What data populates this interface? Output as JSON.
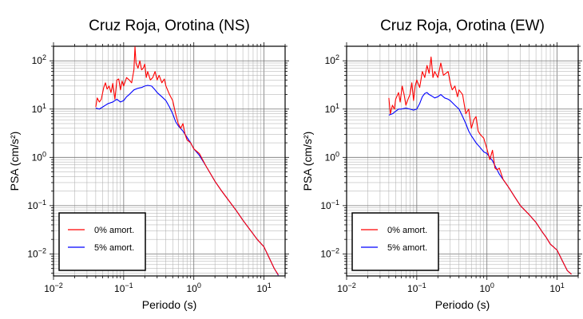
{
  "chart_data": [
    {
      "type": "line",
      "title": "Cruz Roja, Orotina (NS)",
      "xlabel": "Periodo (s)",
      "ylabel": "PSA (cm/s²)",
      "xscale": "log",
      "yscale": "log",
      "xlim": [
        0.01,
        20
      ],
      "ylim": [
        0.0035,
        200
      ],
      "grid": true,
      "legend_position": "bottom-left",
      "x_ticks": [
        {
          "value": 0.01,
          "base": "10",
          "exp": "−2"
        },
        {
          "value": 0.1,
          "base": "10",
          "exp": "−1"
        },
        {
          "value": 1,
          "base": "10",
          "exp": "0"
        },
        {
          "value": 10,
          "base": "10",
          "exp": "1"
        }
      ],
      "y_ticks": [
        {
          "value": 0.01,
          "base": "10",
          "exp": "−2"
        },
        {
          "value": 0.1,
          "base": "10",
          "exp": "−1"
        },
        {
          "value": 1,
          "base": "10",
          "exp": "0"
        },
        {
          "value": 10,
          "base": "10",
          "exp": "1"
        },
        {
          "value": 100,
          "base": "10",
          "exp": "2"
        }
      ],
      "series": [
        {
          "name": "0% amort.",
          "color": "#ff0000",
          "points": [
            [
              0.04,
              11
            ],
            [
              0.042,
              17
            ],
            [
              0.045,
              14
            ],
            [
              0.048,
              16
            ],
            [
              0.052,
              28
            ],
            [
              0.055,
              35
            ],
            [
              0.058,
              26
            ],
            [
              0.062,
              30
            ],
            [
              0.066,
              22
            ],
            [
              0.07,
              34
            ],
            [
              0.075,
              16
            ],
            [
              0.08,
              40
            ],
            [
              0.085,
              42
            ],
            [
              0.09,
              25
            ],
            [
              0.095,
              38
            ],
            [
              0.1,
              30
            ],
            [
              0.11,
              45
            ],
            [
              0.12,
              40
            ],
            [
              0.13,
              35
            ],
            [
              0.14,
              65
            ],
            [
              0.145,
              195
            ],
            [
              0.15,
              90
            ],
            [
              0.16,
              70
            ],
            [
              0.17,
              100
            ],
            [
              0.18,
              65
            ],
            [
              0.19,
              70
            ],
            [
              0.2,
              85
            ],
            [
              0.21,
              45
            ],
            [
              0.22,
              60
            ],
            [
              0.24,
              40
            ],
            [
              0.26,
              45
            ],
            [
              0.28,
              60
            ],
            [
              0.3,
              40
            ],
            [
              0.32,
              50
            ],
            [
              0.35,
              35
            ],
            [
              0.38,
              42
            ],
            [
              0.4,
              30
            ],
            [
              0.45,
              20
            ],
            [
              0.5,
              15
            ],
            [
              0.55,
              8
            ],
            [
              0.6,
              5
            ],
            [
              0.65,
              4
            ],
            [
              0.7,
              5
            ],
            [
              0.75,
              3
            ],
            [
              0.8,
              2.3
            ],
            [
              0.9,
              2
            ],
            [
              1,
              1.5
            ],
            [
              1.2,
              1.2
            ],
            [
              1.5,
              0.65
            ],
            [
              2,
              0.32
            ],
            [
              2.5,
              0.2
            ],
            [
              3,
              0.14
            ],
            [
              4,
              0.08
            ],
            [
              5,
              0.05
            ],
            [
              6,
              0.035
            ],
            [
              7,
              0.026
            ],
            [
              8,
              0.02
            ],
            [
              10,
              0.014
            ],
            [
              12,
              0.008
            ],
            [
              14,
              0.005
            ],
            [
              16,
              0.0037
            ]
          ]
        },
        {
          "name": "5% amort.",
          "color": "#0000ff",
          "points": [
            [
              0.04,
              10.5
            ],
            [
              0.045,
              10
            ],
            [
              0.05,
              11
            ],
            [
              0.055,
              12
            ],
            [
              0.06,
              13
            ],
            [
              0.07,
              14
            ],
            [
              0.08,
              16
            ],
            [
              0.09,
              14
            ],
            [
              0.1,
              15
            ],
            [
              0.11,
              18
            ],
            [
              0.12,
              20
            ],
            [
              0.14,
              25
            ],
            [
              0.16,
              27
            ],
            [
              0.18,
              28
            ],
            [
              0.2,
              30
            ],
            [
              0.22,
              31
            ],
            [
              0.25,
              30
            ],
            [
              0.28,
              25
            ],
            [
              0.3,
              22
            ],
            [
              0.35,
              18
            ],
            [
              0.4,
              15
            ],
            [
              0.45,
              11
            ],
            [
              0.5,
              8
            ],
            [
              0.55,
              5.5
            ],
            [
              0.6,
              4.5
            ],
            [
              0.7,
              3.5
            ],
            [
              0.8,
              2.6
            ],
            [
              0.9,
              2
            ],
            [
              1,
              1.5
            ],
            [
              1.2,
              1.1
            ],
            [
              1.5,
              0.65
            ],
            [
              2,
              0.32
            ],
            [
              2.5,
              0.2
            ],
            [
              3,
              0.14
            ],
            [
              4,
              0.08
            ],
            [
              5,
              0.05
            ],
            [
              6,
              0.035
            ],
            [
              7,
              0.026
            ],
            [
              8,
              0.02
            ],
            [
              10,
              0.014
            ],
            [
              12,
              0.008
            ],
            [
              14,
              0.005
            ],
            [
              16,
              0.0036
            ]
          ]
        }
      ]
    },
    {
      "type": "line",
      "title": "Cruz Roja, Orotina (EW)",
      "xlabel": "Periodo (s)",
      "ylabel": "PSA (cm/s²)",
      "xscale": "log",
      "yscale": "log",
      "xlim": [
        0.01,
        20
      ],
      "ylim": [
        0.0035,
        200
      ],
      "grid": true,
      "legend_position": "bottom-left",
      "x_ticks": [
        {
          "value": 0.01,
          "base": "10",
          "exp": "−2"
        },
        {
          "value": 0.1,
          "base": "10",
          "exp": "−1"
        },
        {
          "value": 1,
          "base": "10",
          "exp": "0"
        },
        {
          "value": 10,
          "base": "10",
          "exp": "1"
        }
      ],
      "y_ticks": [
        {
          "value": 0.01,
          "base": "10",
          "exp": "−2"
        },
        {
          "value": 0.1,
          "base": "10",
          "exp": "−1"
        },
        {
          "value": 1,
          "base": "10",
          "exp": "0"
        },
        {
          "value": 10,
          "base": "10",
          "exp": "1"
        },
        {
          "value": 100,
          "base": "10",
          "exp": "2"
        }
      ],
      "series": [
        {
          "name": "0% amort.",
          "color": "#ff0000",
          "points": [
            [
              0.04,
              17
            ],
            [
              0.042,
              8
            ],
            [
              0.045,
              12
            ],
            [
              0.048,
              10
            ],
            [
              0.05,
              16
            ],
            [
              0.055,
              22
            ],
            [
              0.058,
              14
            ],
            [
              0.062,
              30
            ],
            [
              0.066,
              20
            ],
            [
              0.07,
              12
            ],
            [
              0.075,
              16
            ],
            [
              0.08,
              20
            ],
            [
              0.085,
              35
            ],
            [
              0.09,
              15
            ],
            [
              0.095,
              30
            ],
            [
              0.1,
              40
            ],
            [
              0.11,
              28
            ],
            [
              0.12,
              60
            ],
            [
              0.13,
              45
            ],
            [
              0.14,
              80
            ],
            [
              0.15,
              55
            ],
            [
              0.16,
              120
            ],
            [
              0.17,
              45
            ],
            [
              0.18,
              60
            ],
            [
              0.2,
              45
            ],
            [
              0.22,
              90
            ],
            [
              0.24,
              50
            ],
            [
              0.26,
              55
            ],
            [
              0.28,
              60
            ],
            [
              0.3,
              35
            ],
            [
              0.32,
              25
            ],
            [
              0.35,
              30
            ],
            [
              0.38,
              18
            ],
            [
              0.4,
              25
            ],
            [
              0.45,
              20
            ],
            [
              0.5,
              8
            ],
            [
              0.55,
              10
            ],
            [
              0.6,
              4
            ],
            [
              0.65,
              6
            ],
            [
              0.7,
              7
            ],
            [
              0.75,
              3.5
            ],
            [
              0.8,
              3
            ],
            [
              0.9,
              2.5
            ],
            [
              1,
              1.5
            ],
            [
              1.1,
              0.9
            ],
            [
              1.2,
              1.4
            ],
            [
              1.3,
              0.6
            ],
            [
              1.4,
              0.55
            ],
            [
              1.5,
              0.6
            ],
            [
              1.7,
              0.35
            ],
            [
              2,
              0.25
            ],
            [
              2.5,
              0.15
            ],
            [
              3,
              0.1
            ],
            [
              4,
              0.065
            ],
            [
              5,
              0.045
            ],
            [
              6,
              0.03
            ],
            [
              7,
              0.022
            ],
            [
              8,
              0.016
            ],
            [
              10,
              0.012
            ],
            [
              12,
              0.007
            ],
            [
              14,
              0.0045
            ],
            [
              16,
              0.0038
            ]
          ]
        },
        {
          "name": "5% amort.",
          "color": "#0000ff",
          "points": [
            [
              0.04,
              7.5
            ],
            [
              0.045,
              8
            ],
            [
              0.05,
              9
            ],
            [
              0.055,
              10
            ],
            [
              0.06,
              10
            ],
            [
              0.07,
              10.5
            ],
            [
              0.08,
              10
            ],
            [
              0.09,
              9.5
            ],
            [
              0.1,
              10
            ],
            [
              0.11,
              13
            ],
            [
              0.12,
              18
            ],
            [
              0.13,
              21
            ],
            [
              0.14,
              22
            ],
            [
              0.15,
              20
            ],
            [
              0.16,
              19
            ],
            [
              0.17,
              18
            ],
            [
              0.18,
              17
            ],
            [
              0.2,
              18
            ],
            [
              0.22,
              20
            ],
            [
              0.25,
              17
            ],
            [
              0.28,
              16
            ],
            [
              0.3,
              15
            ],
            [
              0.35,
              12
            ],
            [
              0.4,
              10
            ],
            [
              0.45,
              7
            ],
            [
              0.5,
              5
            ],
            [
              0.55,
              3.5
            ],
            [
              0.6,
              2.8
            ],
            [
              0.7,
              2
            ],
            [
              0.8,
              1.6
            ],
            [
              0.9,
              1.3
            ],
            [
              1,
              1.2
            ],
            [
              1.2,
              0.85
            ],
            [
              1.5,
              0.45
            ],
            [
              2,
              0.25
            ],
            [
              2.5,
              0.15
            ],
            [
              3,
              0.1
            ],
            [
              4,
              0.065
            ],
            [
              5,
              0.045
            ],
            [
              6,
              0.03
            ],
            [
              7,
              0.022
            ],
            [
              8,
              0.016
            ],
            [
              10,
              0.012
            ],
            [
              12,
              0.007
            ],
            [
              14,
              0.0045
            ],
            [
              16,
              0.0038
            ]
          ]
        }
      ]
    }
  ]
}
